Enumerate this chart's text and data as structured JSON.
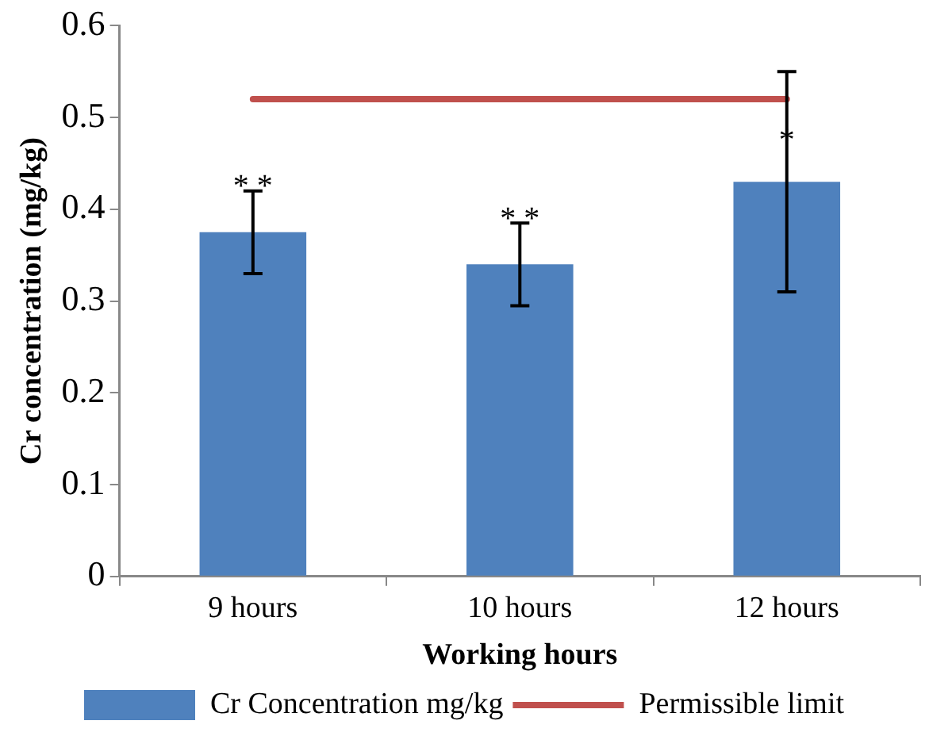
{
  "chart_data": {
    "type": "bar",
    "xlabel": "Working hours",
    "ylabel": "Cr concentration (mg/kg)",
    "categories": [
      "9 hours",
      "10 hours",
      "12 hours"
    ],
    "series": [
      {
        "name": "Cr Concentration mg/kg",
        "color": "#4f81bd",
        "values": [
          0.375,
          0.34,
          0.43
        ],
        "errors": [
          [
            0.33,
            0.42
          ],
          [
            0.295,
            0.385
          ],
          [
            0.31,
            0.55
          ]
        ]
      },
      {
        "name": "Permissible limit",
        "type": "line",
        "color": "#c0504d",
        "values": [
          0.52,
          0.52,
          0.52
        ],
        "marker": "none"
      }
    ],
    "ylim": [
      0,
      0.6
    ],
    "yticks": [
      0,
      0.1,
      0.2,
      0.3,
      0.4,
      0.5,
      0.6
    ],
    "grid": false,
    "legend": "bottom",
    "annotations": [
      {
        "text": "* *",
        "x": "9 hours",
        "y": 0.42
      },
      {
        "text": "* *",
        "x": "10 hours",
        "y": 0.385
      },
      {
        "text": "*",
        "x": "12 hours",
        "y": 0.47
      }
    ]
  }
}
